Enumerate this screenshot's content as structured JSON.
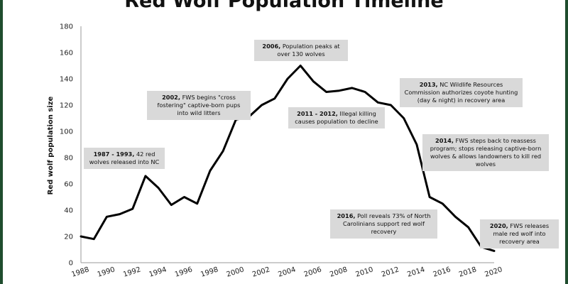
{
  "chart_data": {
    "type": "line",
    "title": "Red Wolf Population Timeline",
    "ylabel": "Red wolf population size",
    "xlabel": "",
    "ylim": [
      0,
      180
    ],
    "yticks": [
      0,
      20,
      40,
      60,
      80,
      100,
      120,
      140,
      160,
      180
    ],
    "xlim": [
      1988,
      2020
    ],
    "xticks": [
      1988,
      1990,
      1992,
      1994,
      1996,
      1998,
      2000,
      2002,
      2004,
      2006,
      2008,
      2010,
      2012,
      2014,
      2016,
      2018,
      2020
    ],
    "grid": false,
    "line_color": "#000000",
    "annotation_bg": "#d9d9d9",
    "frame_color": "#1f4d2e",
    "series": [
      {
        "x": [
          1988,
          1989,
          1990,
          1991,
          1992,
          1993,
          1994,
          1995,
          1996,
          1997,
          1998,
          1999,
          2000,
          2001,
          2002,
          2003,
          2004,
          2005,
          2006,
          2007,
          2008,
          2009,
          2010,
          2011,
          2012,
          2013,
          2014,
          2015,
          2016,
          2017,
          2018,
          2019,
          2020
        ],
        "y": [
          20,
          18,
          35,
          37,
          41,
          66,
          57,
          44,
          50,
          45,
          70,
          85,
          109,
          111,
          120,
          125,
          140,
          150,
          138,
          130,
          131,
          133,
          130,
          122,
          120,
          110,
          90,
          50,
          45,
          35,
          27,
          12,
          9
        ]
      }
    ],
    "annotations": [
      {
        "bold": "1987 - 1993,",
        "text": " 42 red wolves released into NC"
      },
      {
        "bold": "2002,",
        "text": " FWS begins \"cross fostering\" captive-born pups into wild litters"
      },
      {
        "bold": "2006,",
        "text": "  Population peaks at over 130 wolves"
      },
      {
        "bold": "2011 - 2012,",
        "text": " Illegal killing causes population to decline"
      },
      {
        "bold": "2013,",
        "text": "  NC Wildlife Resources Commission authorizes coyote hunting (day & night) in recovery area"
      },
      {
        "bold": "2014,",
        "text": "  FWS steps back to reassess program; stops releasing captive-born wolves & allows landowners to kill red wolves"
      },
      {
        "bold": "2016,",
        "text": " Poll reveals 73% of North Carolinians support red wolf recovery"
      },
      {
        "bold": "2020,",
        "text": " FWS releases male red wolf into recovery area"
      }
    ]
  }
}
